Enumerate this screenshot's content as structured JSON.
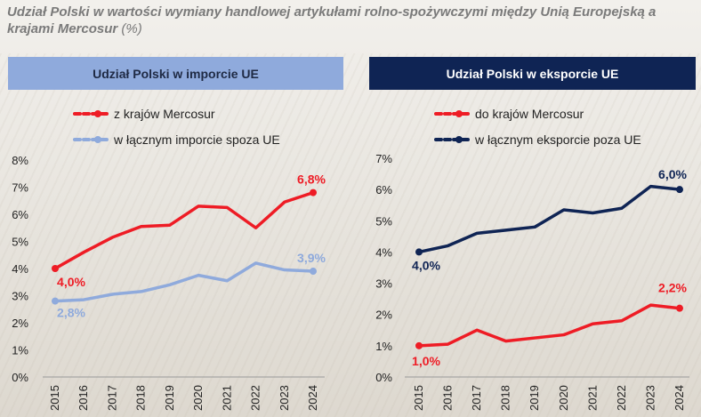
{
  "title": {
    "main": "Udział Polski w wartości wymiany handlowej artykułami rolno-spożywczymi między Unią Europejską a krajami Mercosur",
    "unit": "(%)"
  },
  "colors": {
    "red": "#ee1c25",
    "light_blue": "#8faadc",
    "navy": "#0f2454"
  },
  "chart_data": [
    {
      "type": "line",
      "title": "Udział Polski w imporcie UE",
      "x": [
        "2015",
        "2016",
        "2017",
        "2018",
        "2019",
        "2020",
        "2021",
        "2022",
        "2023",
        "2024"
      ],
      "ylim": [
        0,
        8
      ],
      "yticks": [
        "0%",
        "1%",
        "2%",
        "3%",
        "4%",
        "5%",
        "6%",
        "7%",
        "8%"
      ],
      "grid": false,
      "legend_position": "top",
      "series": [
        {
          "name": "z krajów Mercosur",
          "color": "#ee1c25",
          "values": [
            4.0,
            4.6,
            5.15,
            5.55,
            5.6,
            6.3,
            6.25,
            5.5,
            6.45,
            6.8
          ],
          "labels": [
            {
              "index": 0,
              "text": "4,0%"
            },
            {
              "index": 9,
              "text": "6,8%"
            }
          ]
        },
        {
          "name": "w łącznym imporcie spoza UE",
          "color": "#8faadc",
          "values": [
            2.8,
            2.85,
            3.05,
            3.15,
            3.4,
            3.75,
            3.55,
            4.2,
            3.95,
            3.9
          ],
          "labels": [
            {
              "index": 0,
              "text": "2,8%"
            },
            {
              "index": 9,
              "text": "3,9%"
            }
          ]
        }
      ]
    },
    {
      "type": "line",
      "title": "Udział Polski w eksporcie UE",
      "x": [
        "2015",
        "2016",
        "2017",
        "2018",
        "2019",
        "2020",
        "2021",
        "2022",
        "2023",
        "2024"
      ],
      "ylim": [
        0,
        7
      ],
      "yticks": [
        "0%",
        "1%",
        "2%",
        "3%",
        "4%",
        "5%",
        "6%",
        "7%"
      ],
      "grid": false,
      "legend_position": "top",
      "series": [
        {
          "name": "do krajów Mercosur",
          "color": "#ee1c25",
          "values": [
            1.0,
            1.05,
            1.5,
            1.15,
            1.25,
            1.35,
            1.7,
            1.8,
            2.3,
            2.2
          ],
          "labels": [
            {
              "index": 0,
              "text": "1,0%"
            },
            {
              "index": 9,
              "text": "2,2%"
            }
          ]
        },
        {
          "name": "w łącznym eksporcie poza UE",
          "color": "#0f2454",
          "values": [
            4.0,
            4.2,
            4.6,
            4.7,
            4.8,
            5.35,
            5.25,
            5.4,
            6.1,
            6.0
          ],
          "labels": [
            {
              "index": 0,
              "text": "4,0%"
            },
            {
              "index": 9,
              "text": "6,0%"
            }
          ]
        }
      ]
    }
  ]
}
